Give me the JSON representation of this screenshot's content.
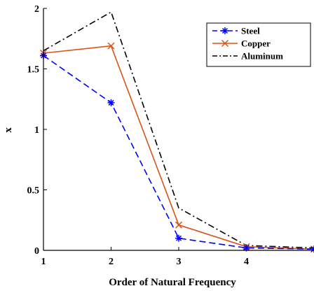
{
  "chart_data": {
    "type": "line",
    "title": "",
    "xlabel": "Order of Natural Frequency",
    "ylabel": "x",
    "x": [
      1,
      2,
      3,
      4,
      5
    ],
    "xticks": [
      "1",
      "2",
      "3",
      "4"
    ],
    "yticks": [
      "0",
      "0.5",
      "1",
      "1.5",
      "2"
    ],
    "xlim": [
      1,
      5
    ],
    "ylim": [
      0,
      2
    ],
    "grid": false,
    "legend_position": "top-right",
    "series": [
      {
        "name": "Steel",
        "values": [
          1.61,
          1.22,
          0.1,
          0.02,
          0.01
        ],
        "color": "#0000FF",
        "line": "dashed",
        "marker": "asterisk"
      },
      {
        "name": "Copper",
        "values": [
          1.63,
          1.69,
          0.21,
          0.03,
          0.01
        ],
        "color": "#D95319",
        "line": "solid",
        "marker": "x"
      },
      {
        "name": "Aluminum",
        "values": [
          1.65,
          1.97,
          0.35,
          0.04,
          0.02
        ],
        "color": "#000000",
        "line": "dashdot",
        "marker": "none"
      }
    ]
  }
}
